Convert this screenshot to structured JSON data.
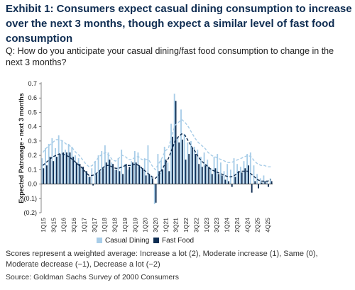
{
  "header": {
    "title": "Exhibit 1: Consumers expect casual dining consumption to increase over the next 3 months, though expect a similar level of fast food consumption",
    "question": "Q: How do you anticipate your casual dining/fast food consumption to change in the next 3 months?"
  },
  "footer": {
    "note": "Scores represent a weighted average: Increase a lot (2), Moderate increase (1), Same (0), Moderate decrease (−1), Decrease a lot (−2)",
    "source": "Source: Goldman Sachs Survey of 2000 Consumers"
  },
  "colors": {
    "casual_dining": "#a8cde8",
    "fast_food": "#0f2d52",
    "casual_trend": "#a8cde8",
    "fast_trend": "#0f2d52"
  },
  "chart_data": {
    "type": "bar",
    "ylabel": "Expected Patronage - next 3 months",
    "ylim": [
      -0.2,
      0.7
    ],
    "yticks": [
      -0.2,
      -0.1,
      0.0,
      0.1,
      0.2,
      0.3,
      0.4,
      0.5,
      0.6,
      0.7
    ],
    "ytick_labels": [
      "(0.2)",
      "(0.1)",
      "0.0",
      "0.1",
      "0.2",
      "0.3",
      "0.4",
      "0.5",
      "0.6",
      "0.7"
    ],
    "x_tick_labels": [
      "1Q15",
      "3Q15",
      "1Q16",
      "3Q16",
      "1Q17",
      "3Q17",
      "1Q18",
      "3Q18",
      "1Q19",
      "3Q19",
      "1Q20",
      "3Q20",
      "1Q21",
      "3Q21",
      "1Q22",
      "3Q22",
      "1Q23",
      "3Q23",
      "1Q24",
      "2Q24",
      "4Q24",
      "2Q25",
      "4Q25"
    ],
    "legend": {
      "placement": "bottom",
      "entries": [
        "Casual Dining",
        "Fast Food"
      ]
    },
    "series": [
      {
        "name": "Casual Dining",
        "style": "bar",
        "values": [
          0.18,
          0.25,
          0.28,
          0.32,
          0.25,
          0.34,
          0.3,
          0.24,
          0.28,
          0.26,
          0.2,
          0.18,
          0.12,
          0.08,
          0.05,
          0.11,
          0.16,
          0.2,
          0.23,
          0.27,
          0.22,
          0.15,
          0.1,
          0.18,
          0.24,
          0.14,
          0.1,
          0.16,
          0.23,
          0.22,
          0.12,
          0.18,
          0.27,
          0.06,
          -0.14,
          0.21,
          0.17,
          0.26,
          0.15,
          0.42,
          0.63,
          0.33,
          0.52,
          0.35,
          0.29,
          0.3,
          0.26,
          0.24,
          0.19,
          0.22,
          0.17,
          0.11,
          0.19,
          0.21,
          0.15,
          0.09,
          0.14,
          0.1,
          0.18,
          0.14,
          0.12,
          0.16,
          0.21,
          0.22,
          0.13,
          0.07,
          0.04,
          0.06,
          0.02,
          0.04
        ]
      },
      {
        "name": "Fast Food",
        "style": "bar",
        "values": [
          0.11,
          0.13,
          0.19,
          0.16,
          0.19,
          0.21,
          0.22,
          0.22,
          0.22,
          0.19,
          0.15,
          0.14,
          0.12,
          0.09,
          0.05,
          -0.01,
          0.07,
          0.09,
          0.11,
          0.15,
          0.17,
          0.14,
          0.1,
          0.09,
          0.07,
          0.14,
          0.12,
          0.15,
          0.15,
          0.13,
          0.11,
          0.06,
          0.07,
          0.04,
          -0.13,
          0.09,
          0.1,
          0.17,
          0.09,
          0.33,
          0.58,
          0.29,
          0.31,
          0.17,
          0.21,
          0.25,
          0.21,
          0.14,
          0.12,
          0.13,
          0.12,
          0.07,
          0.11,
          0.07,
          0.06,
          0.03,
          0.02,
          -0.02,
          0.05,
          0.09,
          0.08,
          0.11,
          0.13,
          -0.06,
          0.02,
          -0.03,
          0.01,
          0.02,
          -0.02,
          0.02
        ]
      },
      {
        "name": "",
        "style": "dashed-line",
        "values": [
          0.22,
          0.25,
          0.27,
          0.29,
          0.31,
          0.31,
          0.3,
          0.28,
          0.27,
          0.25,
          0.22,
          0.2,
          0.17,
          0.14,
          0.12,
          0.13,
          0.16,
          0.19,
          0.21,
          0.22,
          0.2,
          0.17,
          0.16,
          0.18,
          0.2,
          0.19,
          0.17,
          0.17,
          0.19,
          0.19,
          0.17,
          0.17,
          0.17,
          0.13,
          0.1,
          0.14,
          0.18,
          0.23,
          0.25,
          0.34,
          0.41,
          0.43,
          0.45,
          0.43,
          0.4,
          0.36,
          0.32,
          0.29,
          0.27,
          0.25,
          0.22,
          0.2,
          0.19,
          0.18,
          0.17,
          0.16,
          0.15,
          0.15,
          0.16,
          0.17,
          0.18,
          0.19,
          0.2,
          0.19,
          0.16,
          0.14,
          0.13,
          0.13,
          0.12,
          0.12
        ]
      },
      {
        "name": "",
        "style": "dashed-line",
        "values": [
          0.13,
          0.15,
          0.17,
          0.19,
          0.2,
          0.21,
          0.21,
          0.2,
          0.19,
          0.17,
          0.15,
          0.13,
          0.11,
          0.08,
          0.06,
          0.06,
          0.07,
          0.09,
          0.11,
          0.13,
          0.13,
          0.12,
          0.11,
          0.11,
          0.12,
          0.13,
          0.13,
          0.13,
          0.14,
          0.13,
          0.11,
          0.09,
          0.07,
          0.05,
          0.04,
          0.06,
          0.1,
          0.14,
          0.18,
          0.24,
          0.3,
          0.33,
          0.35,
          0.34,
          0.3,
          0.26,
          0.23,
          0.19,
          0.16,
          0.14,
          0.12,
          0.1,
          0.09,
          0.08,
          0.07,
          0.06,
          0.05,
          0.05,
          0.06,
          0.08,
          0.09,
          0.09,
          0.09,
          0.07,
          0.05,
          0.03,
          0.02,
          0.02,
          0.02,
          0.03
        ]
      }
    ]
  }
}
